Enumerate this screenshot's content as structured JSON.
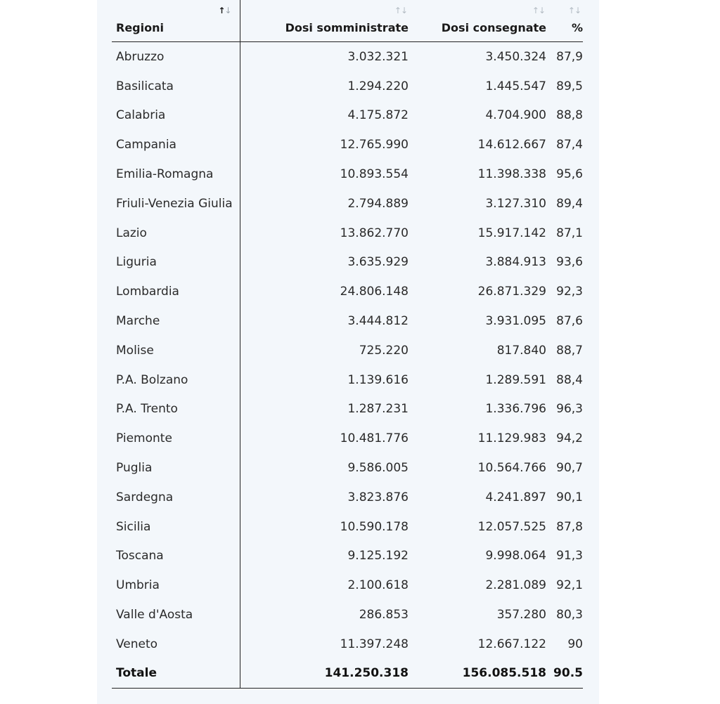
{
  "table": {
    "headers": {
      "regioni": "Regioni",
      "somministrate": "Dosi somministrate",
      "consegnate": "Dosi consegnate",
      "percent": "%"
    },
    "sort_glyphs": {
      "up": "↑",
      "down": "↓"
    },
    "rows": [
      {
        "region": "Abruzzo",
        "somministrate": "3.032.321",
        "consegnate": "3.450.324",
        "percent": "87,9"
      },
      {
        "region": "Basilicata",
        "somministrate": "1.294.220",
        "consegnate": "1.445.547",
        "percent": "89,5"
      },
      {
        "region": "Calabria",
        "somministrate": "4.175.872",
        "consegnate": "4.704.900",
        "percent": "88,8"
      },
      {
        "region": "Campania",
        "somministrate": "12.765.990",
        "consegnate": "14.612.667",
        "percent": "87,4"
      },
      {
        "region": "Emilia-Romagna",
        "somministrate": "10.893.554",
        "consegnate": "11.398.338",
        "percent": "95,6"
      },
      {
        "region": "Friuli-Venezia Giulia",
        "somministrate": "2.794.889",
        "consegnate": "3.127.310",
        "percent": "89,4"
      },
      {
        "region": "Lazio",
        "somministrate": "13.862.770",
        "consegnate": "15.917.142",
        "percent": "87,1"
      },
      {
        "region": "Liguria",
        "somministrate": "3.635.929",
        "consegnate": "3.884.913",
        "percent": "93,6"
      },
      {
        "region": "Lombardia",
        "somministrate": "24.806.148",
        "consegnate": "26.871.329",
        "percent": "92,3"
      },
      {
        "region": "Marche",
        "somministrate": "3.444.812",
        "consegnate": "3.931.095",
        "percent": "87,6"
      },
      {
        "region": "Molise",
        "somministrate": "725.220",
        "consegnate": "817.840",
        "percent": "88,7"
      },
      {
        "region": "P.A. Bolzano",
        "somministrate": "1.139.616",
        "consegnate": "1.289.591",
        "percent": "88,4"
      },
      {
        "region": "P.A. Trento",
        "somministrate": "1.287.231",
        "consegnate": "1.336.796",
        "percent": "96,3"
      },
      {
        "region": "Piemonte",
        "somministrate": "10.481.776",
        "consegnate": "11.129.983",
        "percent": "94,2"
      },
      {
        "region": "Puglia",
        "somministrate": "9.586.005",
        "consegnate": "10.564.766",
        "percent": "90,7"
      },
      {
        "region": "Sardegna",
        "somministrate": "3.823.876",
        "consegnate": "4.241.897",
        "percent": "90,1"
      },
      {
        "region": "Sicilia",
        "somministrate": "10.590.178",
        "consegnate": "12.057.525",
        "percent": "87,8"
      },
      {
        "region": "Toscana",
        "somministrate": "9.125.192",
        "consegnate": "9.998.064",
        "percent": "91,3"
      },
      {
        "region": "Umbria",
        "somministrate": "2.100.618",
        "consegnate": "2.281.089",
        "percent": "92,1"
      },
      {
        "region": "Valle d'Aosta",
        "somministrate": "286.853",
        "consegnate": "357.280",
        "percent": "80,3"
      },
      {
        "region": "Veneto",
        "somministrate": "11.397.248",
        "consegnate": "12.667.122",
        "percent": "90"
      }
    ],
    "total": {
      "region": "Totale",
      "somministrate": "141.250.318",
      "consegnate": "156.085.518",
      "percent": "90.5"
    }
  },
  "colors": {
    "panel_background": "#f3f7fb",
    "active_sort": "#1a1a1a",
    "inactive_sort": "#b4bcc4"
  }
}
